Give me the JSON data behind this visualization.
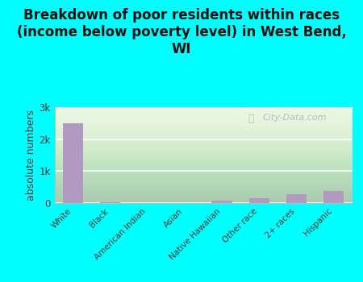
{
  "categories": [
    "White",
    "Black",
    "American Indian",
    "Asian",
    "Native Hawaiian",
    "Other race",
    "2+ races",
    "Hispanic"
  ],
  "values": [
    2500,
    20,
    0,
    0,
    80,
    160,
    280,
    370
  ],
  "bar_color": "#b09ac0",
  "title": "Breakdown of poor residents within races\n(income below poverty level) in West Bend,\nWI",
  "ylabel": "absolute numbers",
  "ylim": [
    0,
    3000
  ],
  "yticks": [
    0,
    1000,
    2000,
    3000
  ],
  "ytick_labels": [
    "0",
    "1k",
    "2k",
    "3k"
  ],
  "background_color": "#00ffff",
  "grid_color": "#ffffff",
  "watermark": "City-Data.com",
  "title_fontsize": 12,
  "ylabel_fontsize": 9
}
